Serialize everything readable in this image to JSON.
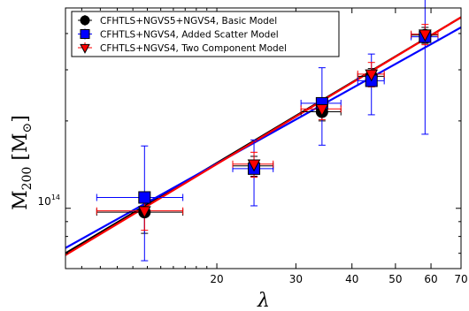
{
  "chart_data": {
    "type": "scatter",
    "xlabel": "λ",
    "ylabel_main": "M",
    "ylabel_sub": "200",
    "ylabel_unit_open": "[M",
    "ylabel_unit_sub": "⊙",
    "ylabel_unit_close": "]",
    "x_scale": "log",
    "y_scale": "log",
    "xlim": [
      9.2,
      70
    ],
    "ylim": [
      62000000000000.0,
      490000000000000.0
    ],
    "x_ticks": [
      20,
      30,
      40,
      50,
      60,
      70
    ],
    "x_tick_labels": [
      "20",
      "30",
      "40",
      "50",
      "60",
      "70"
    ],
    "y_tick_base": "10",
    "y_tick_exp": "14",
    "legend_position": "upper-left",
    "series": [
      {
        "name": "CFHTLS+NGVS5+NGVS4, Basic Model",
        "color": "#000000",
        "marker": "circle",
        "points": [
          {
            "x": 13.8,
            "y": 97000000000000.0,
            "xerr": [
              3.0,
              3.0
            ],
            "yerr": [
              15000000000000.0,
              15000000000000.0
            ]
          },
          {
            "x": 24.2,
            "y": 140000000000000.0,
            "xerr": [
              2.5,
              2.5
            ],
            "yerr": [
              11000000000000.0,
              11000000000000.0
            ]
          },
          {
            "x": 34.3,
            "y": 215000000000000.0,
            "xerr": [
              3.5,
              3.5
            ],
            "yerr": [
              15000000000000.0,
              15000000000000.0
            ]
          },
          {
            "x": 44.2,
            "y": 285000000000000.0,
            "xerr": [
              3.0,
              3.0
            ],
            "yerr": [
              18000000000000.0,
              18000000000000.0
            ]
          },
          {
            "x": 58.2,
            "y": 395000000000000.0,
            "xerr": [
              4.0,
              4.0
            ],
            "yerr": [
              25000000000000.0,
              25000000000000.0
            ]
          }
        ]
      },
      {
        "name": "CFHTLS+NGVS4, Added Scatter Model",
        "color": "#0000ff",
        "marker": "square",
        "points": [
          {
            "x": 13.8,
            "y": 109000000000000.0,
            "xerr": [
              3.0,
              3.0
            ],
            "yerr": [
              43000000000000.0,
              55000000000000.0
            ]
          },
          {
            "x": 24.2,
            "y": 137000000000000.0,
            "xerr": [
              2.5,
              2.5
            ],
            "yerr": [
              35000000000000.0,
              35000000000000.0
            ]
          },
          {
            "x": 34.3,
            "y": 230000000000000.0,
            "xerr": [
              3.5,
              3.5
            ],
            "yerr": [
              65000000000000.0,
              75000000000000.0
            ]
          },
          {
            "x": 44.2,
            "y": 275000000000000.0,
            "xerr": [
              3.0,
              3.0
            ],
            "yerr": [
              65000000000000.0,
              65000000000000.0
            ]
          },
          {
            "x": 58.2,
            "y": 390000000000000.0,
            "xerr": [
              4.0,
              4.0
            ],
            "yerr": [
              210000000000000.0,
              210000000000000.0
            ]
          }
        ]
      },
      {
        "name": "CFHTLS+NGVS4, Two Component Model",
        "color": "#ff0000",
        "marker": "triangle-down",
        "points": [
          {
            "x": 13.8,
            "y": 98000000000000.0,
            "xerr": [
              3.0,
              3.0
            ],
            "yerr": [
              14000000000000.0,
              14000000000000.0
            ]
          },
          {
            "x": 24.2,
            "y": 142000000000000.0,
            "xerr": [
              2.5,
              2.5
            ],
            "yerr": [
              14000000000000.0,
              14000000000000.0
            ]
          },
          {
            "x": 34.3,
            "y": 220000000000000.0,
            "xerr": [
              3.5,
              3.5
            ],
            "yerr": [
              18000000000000.0,
              18000000000000.0
            ]
          },
          {
            "x": 44.2,
            "y": 290000000000000.0,
            "xerr": [
              3.0,
              3.0
            ],
            "yerr": [
              28000000000000.0,
              28000000000000.0
            ]
          },
          {
            "x": 58.2,
            "y": 398000000000000.0,
            "xerr": [
              4.0,
              4.0
            ],
            "yerr": [
              32000000000000.0,
              32000000000000.0
            ]
          }
        ]
      }
    ],
    "fit_lines": [
      {
        "color": "#000000",
        "x": [
          9.2,
          70
        ],
        "y": [
          70000000000000.0,
          455000000000000.0
        ]
      },
      {
        "color": "#0000ff",
        "x": [
          9.2,
          70
        ],
        "y": [
          73000000000000.0,
          420000000000000.0
        ]
      },
      {
        "color": "#ff0000",
        "x": [
          9.2,
          70
        ],
        "y": [
          69000000000000.0,
          455000000000000.0
        ]
      }
    ]
  }
}
